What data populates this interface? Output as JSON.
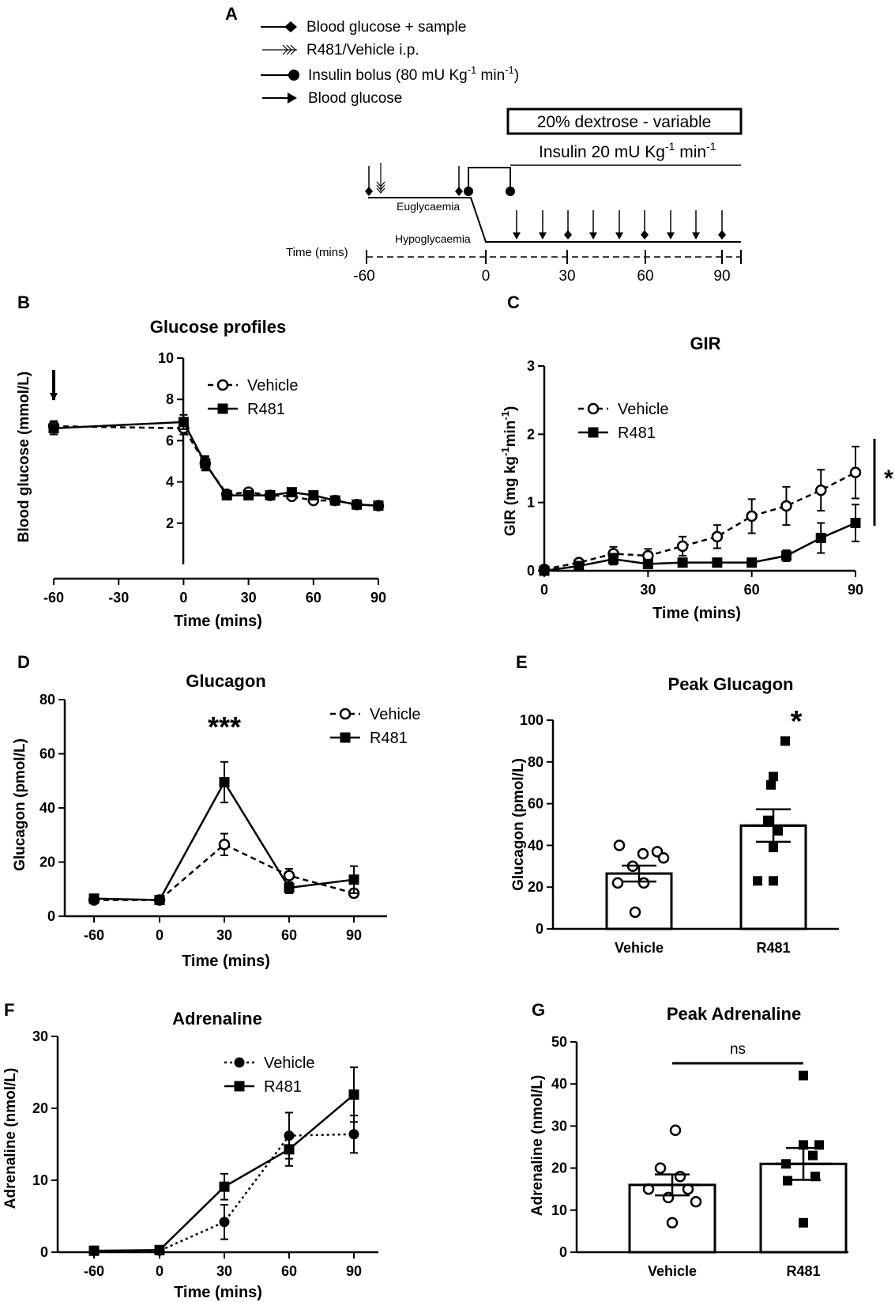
{
  "panelA": {
    "letter": "A",
    "legend": {
      "blood_sample": "Blood glucose + sample",
      "ip": "R481/Vehicle i.p.",
      "insulin_bolus_pre": "Insulin bolus (80 mU Kg",
      "insulin_bolus_exp": "-1",
      "insulin_bolus_mid": " min",
      "insulin_bolus_exp2": "-1",
      "insulin_bolus_post": ")",
      "blood_glucose": "Blood glucose"
    },
    "dextrose": "20% dextrose - variable",
    "insulin_pre": "Insulin 20 mU Kg",
    "insulin_exp": "-1",
    "insulin_mid": " min",
    "insulin_exp2": "-1",
    "euglycaemia": "Euglycaemia",
    "hypoglycaemia": "Hypoglycaemia",
    "time_label": "Time (mins)",
    "ticks": [
      "-60",
      "0",
      "30",
      "60",
      "90"
    ]
  },
  "chart_data": [
    {
      "id": "B",
      "letter": "B",
      "type": "line",
      "title": "Glucose profiles",
      "xlabel": "Time (mins)",
      "ylabel": "Blood glucose (mmol/L)",
      "xlim": [
        -60,
        90
      ],
      "ylim": [
        0,
        10
      ],
      "xticks": [
        "-60",
        "-30",
        "0",
        "30",
        "60",
        "90"
      ],
      "yticks": [
        "2",
        "4",
        "6",
        "8",
        "10"
      ],
      "legend": [
        "Vehicle",
        "R481"
      ],
      "annotation": "arrow at -60",
      "series": [
        {
          "name": "Vehicle",
          "x": [
            -60,
            0,
            10,
            20,
            30,
            40,
            50,
            60,
            70,
            80,
            90
          ],
          "y": [
            6.7,
            6.6,
            4.9,
            3.4,
            3.5,
            3.35,
            3.3,
            3.1,
            3.1,
            2.9,
            2.85
          ],
          "err": [
            0.25,
            0.3,
            0.3,
            0.15,
            0.15,
            0.1,
            0.1,
            0.15,
            0.1,
            0.1,
            0.1
          ]
        },
        {
          "name": "R481",
          "x": [
            -60,
            0,
            10,
            20,
            30,
            40,
            50,
            60,
            70,
            80,
            90
          ],
          "y": [
            6.6,
            6.9,
            4.9,
            3.35,
            3.35,
            3.35,
            3.5,
            3.35,
            3.1,
            2.9,
            2.85
          ],
          "err": [
            0.3,
            0.35,
            0.35,
            0.15,
            0.15,
            0.1,
            0.1,
            0.15,
            0.1,
            0.1,
            0.1
          ]
        }
      ]
    },
    {
      "id": "C",
      "letter": "C",
      "type": "line",
      "title": "GIR",
      "xlabel": "Time (mins)",
      "ylabel_pre": "GIR (mg kg",
      "ylabel_exp": "-1",
      "ylabel_mid": "min",
      "ylabel_exp2": "-1",
      "ylabel_post": ")",
      "xlim": [
        0,
        90
      ],
      "ylim": [
        0,
        3
      ],
      "xticks": [
        "0",
        "30",
        "60",
        "90"
      ],
      "yticks": [
        "0",
        "1",
        "2",
        "3"
      ],
      "legend": [
        "Vehicle",
        "R481"
      ],
      "significance": "*",
      "series": [
        {
          "name": "Vehicle",
          "x": [
            0,
            10,
            20,
            30,
            40,
            50,
            60,
            70,
            80,
            90
          ],
          "y": [
            0.02,
            0.12,
            0.25,
            0.22,
            0.36,
            0.5,
            0.8,
            0.95,
            1.18,
            1.44
          ],
          "err": [
            0.03,
            0.05,
            0.1,
            0.1,
            0.14,
            0.17,
            0.25,
            0.28,
            0.3,
            0.38
          ]
        },
        {
          "name": "R481",
          "x": [
            0,
            10,
            20,
            30,
            40,
            50,
            60,
            70,
            80,
            90
          ],
          "y": [
            0.0,
            0.07,
            0.17,
            0.1,
            0.12,
            0.12,
            0.12,
            0.22,
            0.48,
            0.7
          ],
          "err": [
            0.02,
            0.04,
            0.08,
            0.05,
            0.04,
            0.04,
            0.03,
            0.08,
            0.22,
            0.27
          ]
        }
      ]
    },
    {
      "id": "D",
      "letter": "D",
      "type": "line",
      "title": "Glucagon",
      "xlabel": "Time (mins)",
      "ylabel": "Glucagon (pmol/L)",
      "categories": [
        "-60",
        "0",
        "30",
        "60",
        "90"
      ],
      "ylim": [
        0,
        80
      ],
      "yticks": [
        "0",
        "20",
        "40",
        "60",
        "80"
      ],
      "legend": [
        "Vehicle",
        "R481"
      ],
      "significance": "***",
      "series": [
        {
          "name": "Vehicle",
          "y": [
            6,
            6,
            26.5,
            15,
            8.5
          ],
          "err": [
            1,
            1,
            4,
            2.5,
            1.5
          ]
        },
        {
          "name": "R481",
          "y": [
            6.5,
            6,
            49.5,
            10.5,
            13.5
          ],
          "err": [
            1,
            1,
            7.5,
            2,
            5
          ]
        }
      ]
    },
    {
      "id": "E",
      "letter": "E",
      "type": "bar",
      "title": "Peak Glucagon",
      "ylabel": "Glucagon (pmol/L)",
      "categories": [
        "Vehicle",
        "R481"
      ],
      "ylim": [
        0,
        100
      ],
      "yticks": [
        "0",
        "20",
        "40",
        "60",
        "80",
        "100"
      ],
      "significance": "*",
      "values": [
        26.5,
        49.5
      ],
      "err": [
        3.8,
        7.8
      ],
      "points": [
        [
          40,
          36,
          37,
          34,
          30,
          22,
          22,
          8
        ],
        [
          90,
          73,
          69,
          52,
          47,
          39,
          23,
          23
        ]
      ]
    },
    {
      "id": "F",
      "letter": "F",
      "type": "line",
      "title": "Adrenaline",
      "xlabel": "Time (mins)",
      "ylabel": "Adrenaline (nmol/L)",
      "categories": [
        "-60",
        "0",
        "30",
        "60",
        "90"
      ],
      "ylim": [
        0,
        30
      ],
      "yticks": [
        "0",
        "10",
        "20",
        "30"
      ],
      "legend": [
        "Vehicle",
        "R481"
      ],
      "series": [
        {
          "name": "Vehicle",
          "y": [
            0.2,
            0.2,
            4.2,
            16.2,
            16.4
          ],
          "err": [
            0.2,
            0.2,
            2.4,
            3.2,
            2.6
          ]
        },
        {
          "name": "R481",
          "y": [
            0.2,
            0.3,
            9.1,
            14.3,
            21.9
          ],
          "err": [
            0.2,
            0.2,
            1.8,
            2.3,
            3.8
          ]
        }
      ]
    },
    {
      "id": "G",
      "letter": "G",
      "type": "bar",
      "title": "Peak Adrenaline",
      "ylabel": "Adrenaline (nmol/L)",
      "categories": [
        "Vehicle",
        "R481"
      ],
      "ylim": [
        0,
        50
      ],
      "yticks": [
        "0",
        "10",
        "20",
        "30",
        "40",
        "50"
      ],
      "significance": "ns",
      "values": [
        16,
        21
      ],
      "err": [
        2.5,
        3.8
      ],
      "points": [
        [
          29,
          20,
          18,
          15,
          15,
          13,
          12,
          7
        ],
        [
          42,
          25.5,
          25.5,
          23,
          21,
          18,
          17,
          7
        ]
      ]
    }
  ]
}
